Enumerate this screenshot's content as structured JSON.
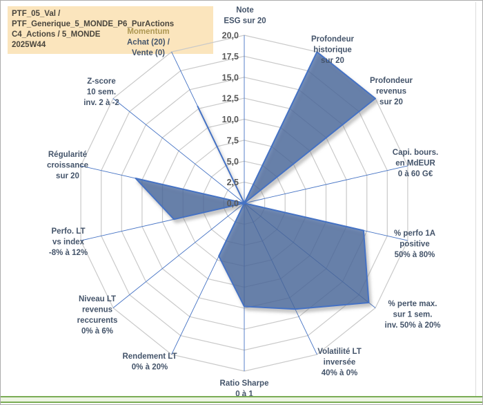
{
  "title_box": {
    "lines": [
      "PTF_05_Val / PTF_Generique_5_MONDE_P6_PurActions",
      "C4_Actions / 5_MONDE",
      "2025W44"
    ],
    "bg": "#FBE5BD",
    "text_color": "#49453D"
  },
  "chart_data": {
    "type": "radar",
    "title": "",
    "legend": "none",
    "grid": true,
    "radial_axis": {
      "min": 0,
      "max": 20,
      "step": 2.5,
      "tick_labels": [
        "0,0",
        "2,5",
        "5,0",
        "7,5",
        "10,0",
        "12,5",
        "15,0",
        "17,5",
        "20,0"
      ]
    },
    "categories": [
      {
        "name": "note-esg",
        "lines": [
          "Note",
          "ESG sur 20"
        ]
      },
      {
        "name": "profondeur-historique",
        "lines": [
          "Profondeur",
          "historique",
          "sur 20"
        ]
      },
      {
        "name": "profondeur-revenus",
        "lines": [
          "Profondeur",
          "revenus",
          "sur 20"
        ]
      },
      {
        "name": "capi-boursiere",
        "lines": [
          "Capi. bours.",
          "en MdEUR",
          "0 à 60 G€"
        ]
      },
      {
        "name": "pct-perfo-1a",
        "lines": [
          "% perfo 1A",
          "positive",
          "50% à 80%"
        ]
      },
      {
        "name": "pct-perte-max",
        "lines": [
          "% perte max.",
          "sur 1 sem.",
          "inv. 50% à 20%"
        ]
      },
      {
        "name": "volatilite-lt",
        "lines": [
          "Volatilité LT",
          "inversée",
          "40% à 0%"
        ]
      },
      {
        "name": "ratio-sharpe",
        "lines": [
          "Ratio Sharpe",
          "0 à 1"
        ]
      },
      {
        "name": "rendement-lt",
        "lines": [
          "Rendement LT",
          "0% à 20%"
        ]
      },
      {
        "name": "niveau-lt-revenus",
        "lines": [
          "Niveau LT",
          "revenus",
          "reccurents",
          "0% à 6%"
        ]
      },
      {
        "name": "perfo-lt-vs-index",
        "lines": [
          "Perfo. LT",
          "vs index",
          "-8% à 12%"
        ]
      },
      {
        "name": "regularite-croissance",
        "lines": [
          "Régularité",
          "croissance",
          "sur 20"
        ]
      },
      {
        "name": "z-score",
        "lines": [
          "Z-score",
          "10 sem.",
          "inv. 2 à -2"
        ]
      },
      {
        "name": "momentum",
        "lines": [
          "Momentum",
          "Achat (20) /",
          "Vente (0)"
        ],
        "line_colors": [
          "#AD9752",
          null,
          null
        ]
      }
    ],
    "series": [
      {
        "name": "portfolio-scores",
        "values": [
          0,
          20,
          20,
          0,
          14.6,
          19,
          14,
          12.3,
          7,
          0,
          8.6,
          13.3,
          0,
          12.8
        ]
      }
    ],
    "colors": {
      "fill": "rgba(62,98,155,0.72)",
      "stroke": "#4472C4",
      "spoke": "#4472C4",
      "grid": "#C9C9C9",
      "tick_text": "#595959",
      "label_text": "#44546A"
    }
  },
  "footer_band": {
    "fill": "#EDF5E3",
    "border_color": "#7AAC55"
  }
}
